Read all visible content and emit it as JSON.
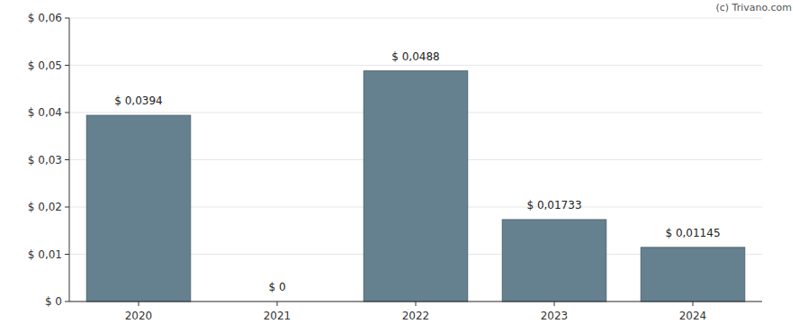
{
  "chart_data": {
    "type": "bar",
    "annotation": "(c) Trivano.com",
    "categories": [
      "2020",
      "2021",
      "2022",
      "2023",
      "2024"
    ],
    "values": [
      0.0394,
      0,
      0.0488,
      0.01733,
      0.01145
    ],
    "value_labels": [
      "$ 0,0394",
      "$ 0",
      "$ 0,0488",
      "$ 0,01733",
      "$ 0,01145"
    ],
    "data_labels": true,
    "color": "#65808f",
    "ylim": [
      0,
      0.06
    ],
    "yticks": [
      {
        "value": 0,
        "label": "$ 0"
      },
      {
        "value": 0.01,
        "label": "$ 0,01"
      },
      {
        "value": 0.02,
        "label": "$ 0,02"
      },
      {
        "value": 0.03,
        "label": "$ 0,03"
      },
      {
        "value": 0.04,
        "label": "$ 0,04"
      },
      {
        "value": 0.05,
        "label": "$ 0,05"
      },
      {
        "value": 0.06,
        "label": "$ 0,06"
      }
    ],
    "grid": true
  }
}
